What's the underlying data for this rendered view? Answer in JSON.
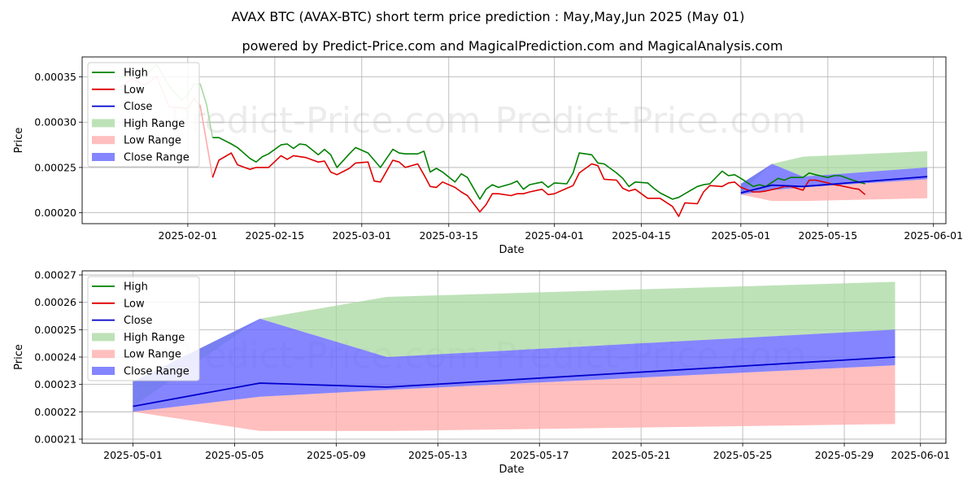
{
  "title": "AVAX BTC (AVAX-BTC) short term price prediction : May,May,Jun 2025 (May 01)",
  "subtitle": "powered by Predict-Price.com and MagicalPrediction.com and MagicalAnalysis.com",
  "watermark": "Predict-Price.com",
  "colors": {
    "high": "#008000",
    "low": "#e00000",
    "close": "#0000cc",
    "high_range": "#a8d8a0",
    "low_range": "#ffaaaa",
    "close_range": "#6666ff",
    "grid": "#b0b0b0"
  },
  "chart_data": [
    {
      "type": "line",
      "xlabel": "Date",
      "ylabel": "Price",
      "xlim": [
        "2025-01-15",
        "2025-06-03"
      ],
      "ylim": [
        0.000188,
        0.000372
      ],
      "x_ticks": [
        "2025-02-01",
        "2025-02-15",
        "2025-03-01",
        "2025-03-15",
        "2025-04-01",
        "2025-04-15",
        "2025-05-01",
        "2025-05-15",
        "2025-06-01"
      ],
      "y_ticks": [
        0.0002,
        0.00025,
        0.0003,
        0.00035
      ],
      "y_tick_labels": [
        "0.00020",
        "0.00025",
        "0.00030",
        "0.00035"
      ],
      "legend": [
        "High",
        "Low",
        "Close",
        "High Range",
        "Low Range",
        "Close Range"
      ],
      "legend_position": "upper-left",
      "grid": true,
      "history": {
        "high": [
          [
            "2025-01-21",
            0.000346
          ],
          [
            "2025-01-23",
            0.000354
          ],
          [
            "2025-01-25",
            0.00035
          ],
          [
            "2025-01-27",
            0.000364
          ],
          [
            "2025-01-29",
            0.00034
          ],
          [
            "2025-01-31",
            0.000324
          ],
          [
            "2025-02-01",
            0.00033
          ],
          [
            "2025-02-02",
            0.000342
          ],
          [
            "2025-02-03",
            0.000342
          ],
          [
            "2025-02-04",
            0.00032
          ],
          [
            "2025-02-05",
            0.000283
          ],
          [
            "2025-02-06",
            0.000283
          ],
          [
            "2025-02-08",
            0.000276
          ],
          [
            "2025-02-09",
            0.000272
          ],
          [
            "2025-02-11",
            0.00026
          ],
          [
            "2025-02-12",
            0.000256
          ],
          [
            "2025-02-13",
            0.000262
          ],
          [
            "2025-02-14",
            0.000265
          ],
          [
            "2025-02-16",
            0.000275
          ],
          [
            "2025-02-17",
            0.000276
          ],
          [
            "2025-02-18",
            0.000271
          ],
          [
            "2025-02-19",
            0.000276
          ],
          [
            "2025-02-20",
            0.000275
          ],
          [
            "2025-02-22",
            0.000264
          ],
          [
            "2025-02-23",
            0.00027
          ],
          [
            "2025-02-24",
            0.000264
          ],
          [
            "2025-02-25",
            0.00025
          ],
          [
            "2025-02-27",
            0.000265
          ],
          [
            "2025-02-28",
            0.000272
          ],
          [
            "2025-03-02",
            0.000266
          ],
          [
            "2025-03-03",
            0.000258
          ],
          [
            "2025-03-04",
            0.00025
          ],
          [
            "2025-03-06",
            0.00027
          ],
          [
            "2025-03-07",
            0.000266
          ],
          [
            "2025-03-08",
            0.000265
          ],
          [
            "2025-03-10",
            0.000265
          ],
          [
            "2025-03-11",
            0.000268
          ],
          [
            "2025-03-12",
            0.000245
          ],
          [
            "2025-03-13",
            0.000249
          ],
          [
            "2025-03-14",
            0.000245
          ],
          [
            "2025-03-16",
            0.000234
          ],
          [
            "2025-03-17",
            0.000243
          ],
          [
            "2025-03-18",
            0.000239
          ],
          [
            "2025-03-20",
            0.000215
          ],
          [
            "2025-03-21",
            0.000226
          ],
          [
            "2025-03-22",
            0.000231
          ],
          [
            "2025-03-23",
            0.000228
          ],
          [
            "2025-03-25",
            0.000232
          ],
          [
            "2025-03-26",
            0.000235
          ],
          [
            "2025-03-27",
            0.000226
          ],
          [
            "2025-03-28",
            0.000231
          ],
          [
            "2025-03-30",
            0.000234
          ],
          [
            "2025-03-31",
            0.000228
          ],
          [
            "2025-04-01",
            0.000233
          ],
          [
            "2025-04-03",
            0.000232
          ],
          [
            "2025-04-04",
            0.000244
          ],
          [
            "2025-04-05",
            0.000266
          ],
          [
            "2025-04-07",
            0.000264
          ],
          [
            "2025-04-08",
            0.000255
          ],
          [
            "2025-04-09",
            0.000254
          ],
          [
            "2025-04-11",
            0.000244
          ],
          [
            "2025-04-12",
            0.000238
          ],
          [
            "2025-04-13",
            0.000229
          ],
          [
            "2025-04-14",
            0.000234
          ],
          [
            "2025-04-16",
            0.000233
          ],
          [
            "2025-04-17",
            0.000227
          ],
          [
            "2025-04-18",
            0.000222
          ],
          [
            "2025-04-20",
            0.000215
          ],
          [
            "2025-04-21",
            0.000217
          ],
          [
            "2025-04-22",
            0.000221
          ],
          [
            "2025-04-24",
            0.000229
          ],
          [
            "2025-04-25",
            0.000231
          ],
          [
            "2025-04-26",
            0.000232
          ],
          [
            "2025-04-28",
            0.000246
          ],
          [
            "2025-04-29",
            0.000241
          ],
          [
            "2025-04-30",
            0.000242
          ],
          [
            "2025-05-01",
            0.000238
          ],
          [
            "2025-05-03",
            0.000229
          ],
          [
            "2025-05-04",
            0.000231
          ],
          [
            "2025-05-05",
            0.000229
          ],
          [
            "2025-05-07",
            0.000238
          ],
          [
            "2025-05-08",
            0.000236
          ],
          [
            "2025-05-09",
            0.000239
          ],
          [
            "2025-05-11",
            0.000239
          ],
          [
            "2025-05-12",
            0.000244
          ],
          [
            "2025-05-13",
            0.000242
          ],
          [
            "2025-05-15",
            0.000239
          ],
          [
            "2025-05-16",
            0.000241
          ],
          [
            "2025-05-17",
            0.000241
          ],
          [
            "2025-05-19",
            0.000236
          ],
          [
            "2025-05-20",
            0.000234
          ],
          [
            "2025-05-21",
            0.000232
          ]
        ],
        "low": [
          [
            "2025-01-21",
            0.000338
          ],
          [
            "2025-01-23",
            0.000348
          ],
          [
            "2025-01-25",
            0.000341
          ],
          [
            "2025-01-27",
            0.00035
          ],
          [
            "2025-01-29",
            0.000317
          ],
          [
            "2025-01-31",
            0.000316
          ],
          [
            "2025-02-01",
            0.000315
          ],
          [
            "2025-02-02",
            0.000326
          ],
          [
            "2025-02-03",
            0.000318
          ],
          [
            "2025-02-04",
            0.000279
          ],
          [
            "2025-02-05",
            0.000239
          ],
          [
            "2025-02-06",
            0.000258
          ],
          [
            "2025-02-08",
            0.000266
          ],
          [
            "2025-02-09",
            0.000253
          ],
          [
            "2025-02-11",
            0.000248
          ],
          [
            "2025-02-12",
            0.00025
          ],
          [
            "2025-02-13",
            0.00025
          ],
          [
            "2025-02-14",
            0.00025
          ],
          [
            "2025-02-16",
            0.000263
          ],
          [
            "2025-02-17",
            0.000259
          ],
          [
            "2025-02-18",
            0.000263
          ],
          [
            "2025-02-19",
            0.000262
          ],
          [
            "2025-02-20",
            0.000261
          ],
          [
            "2025-02-22",
            0.000256
          ],
          [
            "2025-02-23",
            0.000257
          ],
          [
            "2025-02-24",
            0.000245
          ],
          [
            "2025-02-25",
            0.000242
          ],
          [
            "2025-02-27",
            0.000249
          ],
          [
            "2025-02-28",
            0.000255
          ],
          [
            "2025-03-02",
            0.000256
          ],
          [
            "2025-03-03",
            0.000235
          ],
          [
            "2025-03-04",
            0.000234
          ],
          [
            "2025-03-06",
            0.000258
          ],
          [
            "2025-03-07",
            0.000256
          ],
          [
            "2025-03-08",
            0.00025
          ],
          [
            "2025-03-10",
            0.000254
          ],
          [
            "2025-03-11",
            0.000242
          ],
          [
            "2025-03-12",
            0.000229
          ],
          [
            "2025-03-13",
            0.000228
          ],
          [
            "2025-03-14",
            0.000234
          ],
          [
            "2025-03-16",
            0.000228
          ],
          [
            "2025-03-17",
            0.000223
          ],
          [
            "2025-03-18",
            0.000219
          ],
          [
            "2025-03-20",
            0.000201
          ],
          [
            "2025-03-21",
            0.000209
          ],
          [
            "2025-03-22",
            0.000221
          ],
          [
            "2025-03-23",
            0.000221
          ],
          [
            "2025-03-25",
            0.000219
          ],
          [
            "2025-03-26",
            0.000221
          ],
          [
            "2025-03-27",
            0.000221
          ],
          [
            "2025-03-28",
            0.000223
          ],
          [
            "2025-03-30",
            0.000226
          ],
          [
            "2025-03-31",
            0.00022
          ],
          [
            "2025-04-01",
            0.000221
          ],
          [
            "2025-04-03",
            0.000227
          ],
          [
            "2025-04-04",
            0.00023
          ],
          [
            "2025-04-05",
            0.000244
          ],
          [
            "2025-04-07",
            0.000254
          ],
          [
            "2025-04-08",
            0.000252
          ],
          [
            "2025-04-09",
            0.000237
          ],
          [
            "2025-04-11",
            0.000236
          ],
          [
            "2025-04-12",
            0.000227
          ],
          [
            "2025-04-13",
            0.000224
          ],
          [
            "2025-04-14",
            0.000226
          ],
          [
            "2025-04-16",
            0.000216
          ],
          [
            "2025-04-17",
            0.000216
          ],
          [
            "2025-04-18",
            0.000216
          ],
          [
            "2025-04-20",
            0.000207
          ],
          [
            "2025-04-21",
            0.000196
          ],
          [
            "2025-04-22",
            0.000211
          ],
          [
            "2025-04-24",
            0.00021
          ],
          [
            "2025-04-25",
            0.000223
          ],
          [
            "2025-04-26",
            0.00023
          ],
          [
            "2025-04-28",
            0.000229
          ],
          [
            "2025-04-29",
            0.000233
          ],
          [
            "2025-04-30",
            0.000234
          ],
          [
            "2025-05-01",
            0.000228
          ],
          [
            "2025-05-03",
            0.000223
          ],
          [
            "2025-05-04",
            0.000223
          ],
          [
            "2025-05-05",
            0.000224
          ],
          [
            "2025-05-07",
            0.000227
          ],
          [
            "2025-05-08",
            0.000229
          ],
          [
            "2025-05-09",
            0.000229
          ],
          [
            "2025-05-11",
            0.000225
          ],
          [
            "2025-05-12",
            0.000236
          ],
          [
            "2025-05-13",
            0.000236
          ],
          [
            "2025-05-15",
            0.000233
          ],
          [
            "2025-05-16",
            0.000231
          ],
          [
            "2025-05-17",
            0.00023
          ],
          [
            "2025-05-19",
            0.000227
          ],
          [
            "2025-05-20",
            0.000226
          ],
          [
            "2025-05-21",
            0.00022
          ]
        ]
      },
      "forecast": {
        "dates": [
          "2025-05-01",
          "2025-05-06",
          "2025-05-11",
          "2025-05-31"
        ],
        "close": [
          0.000222,
          0.0002305,
          0.000229,
          0.00024
        ],
        "high_range": {
          "upper": [
            0.000232,
            0.000254,
            0.000262,
            0.000268
          ],
          "lower": [
            0.000222,
            0.000254,
            0.00024,
            0.00025
          ]
        },
        "low_range": {
          "upper": [
            0.00022,
            0.000225,
            0.000228,
            0.000237
          ],
          "lower": [
            0.00022,
            0.000213,
            0.000213,
            0.000216
          ]
        },
        "close_range": {
          "upper": [
            0.000232,
            0.000254,
            0.00024,
            0.00025
          ],
          "lower": [
            0.00022,
            0.000225,
            0.000228,
            0.000237
          ]
        }
      }
    },
    {
      "type": "line",
      "xlabel": "Date",
      "ylabel": "Price",
      "xlim": [
        "2025-04-29",
        "2025-06-02"
      ],
      "ylim": [
        0.0002085,
        0.0002715
      ],
      "x_ticks": [
        "2025-05-01",
        "2025-05-05",
        "2025-05-09",
        "2025-05-13",
        "2025-05-17",
        "2025-05-21",
        "2025-05-25",
        "2025-05-29",
        "2025-06-01"
      ],
      "y_ticks": [
        0.00021,
        0.00022,
        0.00023,
        0.00024,
        0.00025,
        0.00026,
        0.00027
      ],
      "y_tick_labels": [
        "0.00021",
        "0.00022",
        "0.00023",
        "0.00024",
        "0.00025",
        "0.00026",
        "0.00027"
      ],
      "legend": [
        "High",
        "Low",
        "Close",
        "High Range",
        "Low Range",
        "Close Range"
      ],
      "legend_position": "upper-left",
      "grid": true,
      "forecast": {
        "dates": [
          "2025-05-01",
          "2025-05-06",
          "2025-05-11",
          "2025-05-31"
        ],
        "close": [
          0.000222,
          0.0002305,
          0.000229,
          0.00024
        ],
        "high_range": {
          "upper": [
            0.000231,
            0.000254,
            0.000262,
            0.0002675
          ],
          "lower": [
            0.000222,
            0.000254,
            0.00024,
            0.00025
          ]
        },
        "low_range": {
          "upper": [
            0.00022,
            0.0002255,
            0.000228,
            0.000237
          ],
          "lower": [
            0.00022,
            0.000213,
            0.000213,
            0.0002155
          ]
        },
        "close_range": {
          "upper": [
            0.000231,
            0.000254,
            0.00024,
            0.00025
          ],
          "lower": [
            0.00022,
            0.0002255,
            0.000228,
            0.000237
          ]
        }
      }
    }
  ]
}
